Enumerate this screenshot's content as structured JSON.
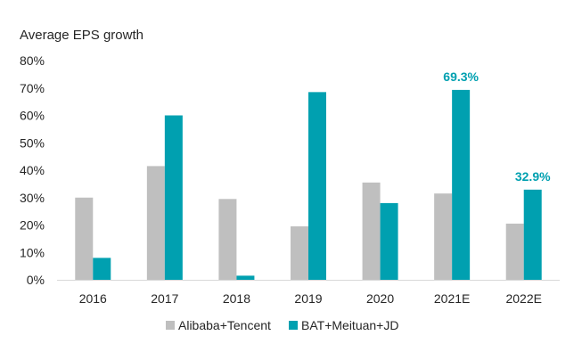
{
  "chart_data": {
    "type": "bar",
    "title": "",
    "ylabel": "Average EPS growth",
    "xlabel": "",
    "categories": [
      "2016",
      "2017",
      "2018",
      "2019",
      "2020",
      "2021E",
      "2022E"
    ],
    "ylim": [
      0,
      80
    ],
    "yticks": [
      "0%",
      "10%",
      "20%",
      "30%",
      "40%",
      "50%",
      "60%",
      "70%",
      "80%"
    ],
    "series": [
      {
        "name": "Alibaba+Tencent",
        "color": "#bfbfbf",
        "values": [
          30,
          41.5,
          29.5,
          19.5,
          35.5,
          31.5,
          20.5
        ]
      },
      {
        "name": "BAT+Meituan+JD",
        "color": "#00a0b0",
        "values": [
          8,
          60,
          1.5,
          68.5,
          28,
          69.3,
          32.9
        ]
      }
    ],
    "data_labels": [
      {
        "series": 1,
        "category": "2021E",
        "text": "69.3%"
      },
      {
        "series": 1,
        "category": "2022E",
        "text": "32.9%"
      }
    ],
    "legend_position": "bottom",
    "grid": false
  }
}
